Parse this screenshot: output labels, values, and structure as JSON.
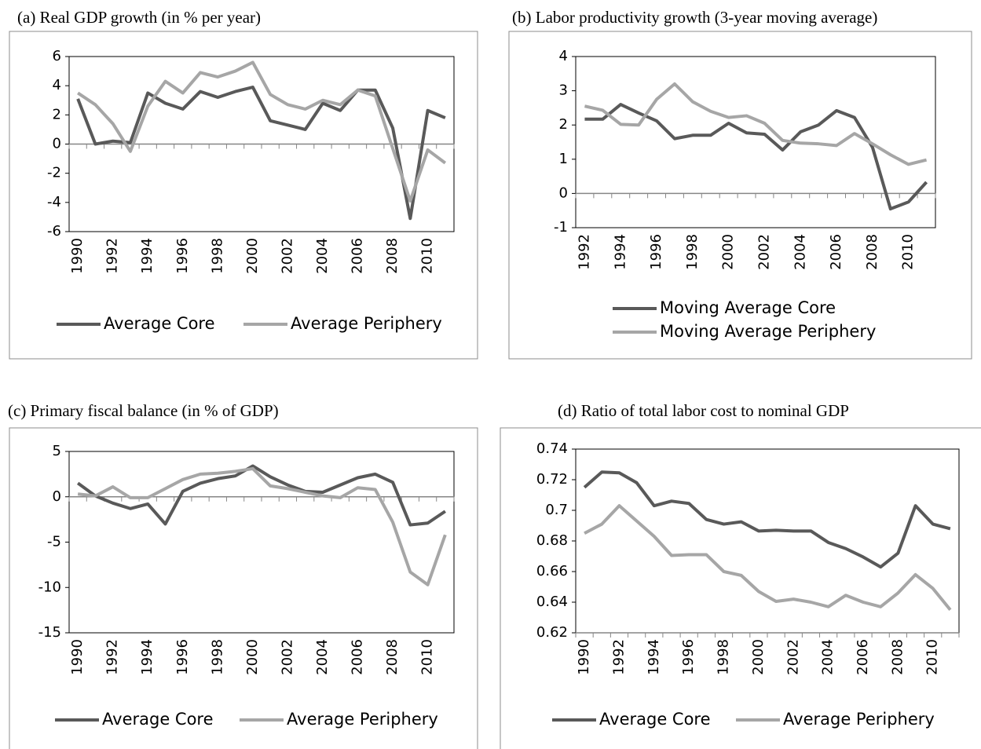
{
  "chart_data": [
    {
      "type": "line",
      "title": "(a)   Real GDP growth (in % per year)",
      "categories": [
        "1990",
        null,
        "1992",
        null,
        "1994",
        null,
        "1996",
        null,
        "1998",
        null,
        "2000",
        null,
        "2002",
        null,
        "2004",
        null,
        "2006",
        null,
        "2008",
        null,
        "2010",
        null
      ],
      "series": [
        {
          "name": "Average Core",
          "color": "#595959",
          "values": [
            3.1,
            0.0,
            0.2,
            0.1,
            3.5,
            2.8,
            2.4,
            3.6,
            3.2,
            3.6,
            3.9,
            1.6,
            1.3,
            1.0,
            2.8,
            2.3,
            3.7,
            3.7,
            1.1,
            -5.1,
            2.3,
            1.8
          ]
        },
        {
          "name": "Average Periphery",
          "color": "#a6a6a6",
          "values": [
            3.5,
            2.7,
            1.4,
            -0.5,
            2.6,
            4.3,
            3.5,
            4.9,
            4.6,
            5.0,
            5.6,
            3.4,
            2.7,
            2.4,
            3.0,
            2.7,
            3.7,
            3.3,
            -0.3,
            -3.9,
            -0.4,
            -1.3
          ]
        }
      ],
      "ylim": [
        -6,
        6
      ],
      "yticks": [
        -6,
        -4,
        -2,
        0,
        2,
        4,
        6
      ],
      "legend": "bottom"
    },
    {
      "type": "line",
      "title": "(b) Labor productivity growth (3-year moving average)",
      "categories": [
        "1992",
        null,
        "1994",
        null,
        "1996",
        null,
        "1998",
        null,
        "2000",
        null,
        "2002",
        null,
        "2004",
        null,
        "2006",
        null,
        "2008",
        null,
        "2010",
        null
      ],
      "series": [
        {
          "name": "Moving Average Core",
          "color": "#595959",
          "values": [
            2.17,
            2.17,
            2.6,
            2.35,
            2.12,
            1.6,
            1.7,
            1.7,
            2.05,
            1.77,
            1.73,
            1.27,
            1.8,
            2.0,
            2.42,
            2.22,
            1.35,
            -0.45,
            -0.25,
            0.33
          ]
        },
        {
          "name": "Moving Average Periphery",
          "color": "#a6a6a6",
          "values": [
            2.55,
            2.43,
            2.02,
            2.0,
            2.75,
            3.2,
            2.68,
            2.4,
            2.22,
            2.27,
            2.05,
            1.55,
            1.47,
            1.45,
            1.4,
            1.75,
            1.45,
            1.13,
            0.85,
            0.98
          ]
        }
      ],
      "ylim": [
        -1,
        4
      ],
      "yticks": [
        -1,
        0,
        1,
        2,
        3,
        4
      ],
      "legend": "bottom"
    },
    {
      "type": "line",
      "title": "(c)  Primary fiscal balance (in % of GDP)",
      "categories": [
        "1990",
        null,
        "1992",
        null,
        "1994",
        null,
        "1996",
        null,
        "1998",
        null,
        "2000",
        null,
        "2002",
        null,
        "2004",
        null,
        "2006",
        null,
        "2008",
        null,
        "2010",
        null
      ],
      "series": [
        {
          "name": "Average Core",
          "color": "#595959",
          "values": [
            1.5,
            0.1,
            -0.7,
            -1.3,
            -0.8,
            -3.0,
            0.6,
            1.5,
            2.0,
            2.3,
            3.4,
            2.2,
            1.3,
            0.6,
            0.5,
            1.3,
            2.1,
            2.5,
            1.6,
            -3.1,
            -2.9,
            -1.6
          ]
        },
        {
          "name": "Average Periphery",
          "color": "#a6a6a6",
          "values": [
            0.3,
            0.1,
            1.1,
            -0.1,
            -0.1,
            0.9,
            1.9,
            2.5,
            2.6,
            2.8,
            3.1,
            1.2,
            0.9,
            0.5,
            0.1,
            -0.1,
            1.0,
            0.8,
            -2.8,
            -8.3,
            -9.7,
            -4.2
          ]
        }
      ],
      "ylim": [
        -15,
        5
      ],
      "yticks": [
        -15,
        -10,
        -5,
        0,
        5
      ],
      "legend": "bottom"
    },
    {
      "type": "line",
      "title": "(d) Ratio of total labor cost to nominal GDP",
      "categories": [
        "1990",
        null,
        "1992",
        null,
        "1994",
        null,
        "1996",
        null,
        "1998",
        null,
        "2000",
        null,
        "2002",
        null,
        "2004",
        null,
        "2006",
        null,
        "2008",
        null,
        "2010",
        null
      ],
      "series": [
        {
          "name": "Average Core",
          "color": "#595959",
          "values": [
            0.715,
            0.725,
            0.7245,
            0.718,
            0.703,
            0.706,
            0.7045,
            0.694,
            0.691,
            0.6925,
            0.6865,
            0.687,
            0.6865,
            0.6865,
            0.679,
            0.675,
            0.6695,
            0.663,
            0.672,
            0.703,
            0.691,
            0.688
          ]
        },
        {
          "name": "Average Periphery",
          "color": "#a6a6a6",
          "values": [
            0.685,
            0.691,
            0.703,
            0.693,
            0.683,
            0.6705,
            0.671,
            0.671,
            0.66,
            0.6575,
            0.647,
            0.6405,
            0.642,
            0.64,
            0.637,
            0.6445,
            0.64,
            0.637,
            0.646,
            0.658,
            0.649,
            0.635
          ]
        }
      ],
      "ylim": [
        0.62,
        0.74
      ],
      "yticks": [
        0.62,
        0.64,
        0.66,
        0.68,
        0.7,
        0.72,
        0.74
      ],
      "legend": "bottom"
    }
  ]
}
